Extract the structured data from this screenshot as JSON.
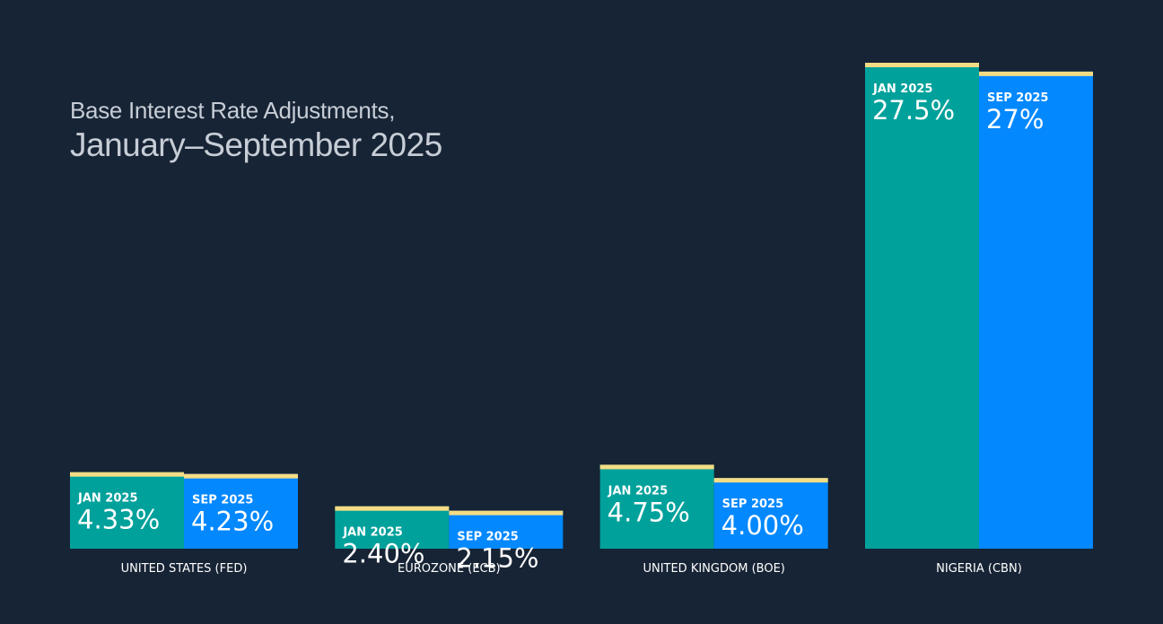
{
  "colors": {
    "background": "#172435",
    "jan_bar": "#00a19b",
    "sep_bar": "#0388fe",
    "cap": "#f5dc84",
    "title": "#c7cdd6"
  },
  "chart_data": {
    "type": "bar",
    "title": "Base Interest Rate Adjustments,",
    "subtitle": "January–September 2025",
    "xlabel": "",
    "ylabel": "",
    "ylim": [
      0,
      27.5
    ],
    "grid": false,
    "categories": [
      "UNITED STATES (FED)",
      "EUROZONE (ECB)",
      "UNITED KINGDOM (BOE)",
      "NIGERIA (CBN)"
    ],
    "series": [
      {
        "name": "JAN 2025",
        "values": [
          4.33,
          2.4,
          4.75,
          27.5
        ],
        "labels": [
          "4.33%",
          "2.40%",
          "4.75%",
          "27.5%"
        ]
      },
      {
        "name": "SEP 2025",
        "values": [
          4.23,
          2.15,
          4.0,
          27
        ],
        "labels": [
          "4.23%",
          "2.15%",
          "4.00%",
          "27%"
        ]
      }
    ]
  }
}
